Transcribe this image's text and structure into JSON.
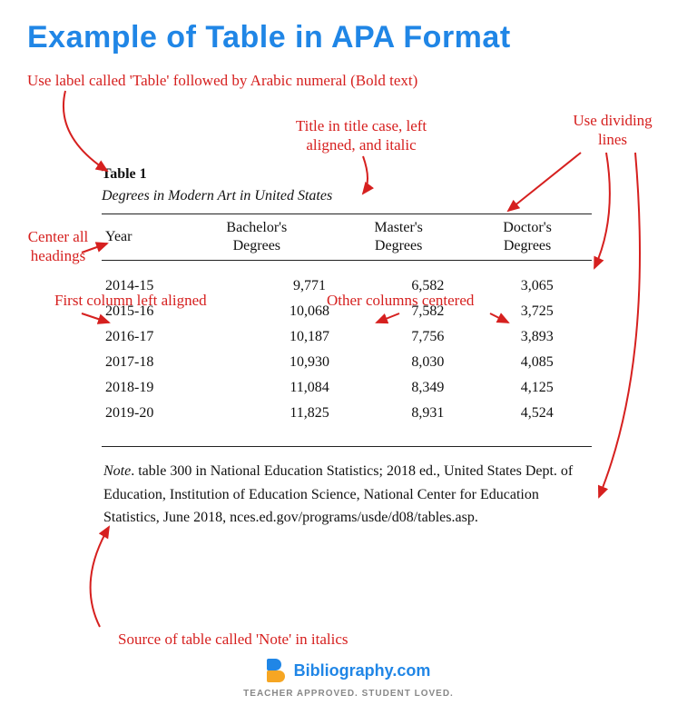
{
  "page_title": "Example of Table in APA Format",
  "annotations": {
    "label_rule": "Use label called 'Table' followed by Arabic numeral (Bold text)",
    "title_rule": "Title in title case, left\naligned, and italic",
    "dividing_lines": "Use dividing\nlines",
    "center_headings": "Center all\nheadings",
    "first_col": "First column left aligned",
    "other_cols": "Other columns centered",
    "note_rule": "Source of table called 'Note' in italics"
  },
  "table": {
    "label": "Table 1",
    "title": "Degrees in Modern Art in United States",
    "columns": [
      "Year",
      "Bachelor's\nDegrees",
      "Master's\nDegrees",
      "Doctor's\nDegrees"
    ],
    "rows": [
      [
        "2014-15",
        "9,771",
        "6,582",
        "3,065"
      ],
      [
        "2015-16",
        "10,068",
        "7,582",
        "3,725"
      ],
      [
        "2016-17",
        "10,187",
        "7,756",
        "3,893"
      ],
      [
        "2017-18",
        "10,930",
        "8,030",
        "4,085"
      ],
      [
        "2018-19",
        "11,084",
        "8,349",
        "4,125"
      ],
      [
        "2019-20",
        "11,825",
        "8,931",
        "4,524"
      ]
    ],
    "note_label": "Note",
    "note_text": ". table 300 in National Education Statistics; 2018 ed., United States Dept. of Education, Institution of Education Science, National Center for Education Statistics, June 2018, nces.ed.gov/programs/usde/d08/tables.asp."
  },
  "footer": {
    "brand": "Bibliography.com",
    "tagline": "TEACHER APPROVED. STUDENT LOVED."
  },
  "colors": {
    "title": "#2086e6",
    "annotation": "#d6201f",
    "text": "#111111",
    "rule": "#222222",
    "accent_orange": "#f6a623",
    "background": "#ffffff"
  }
}
